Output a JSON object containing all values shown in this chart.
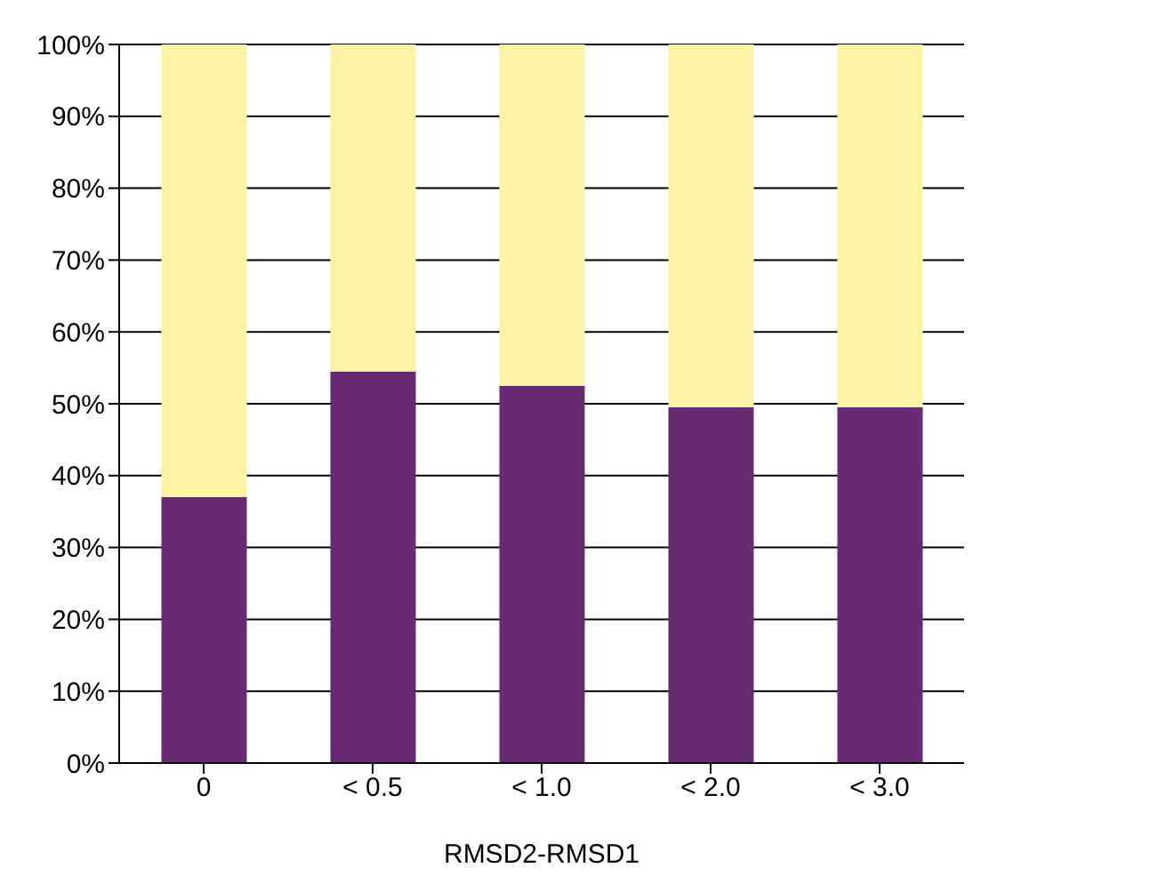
{
  "chart_data": {
    "type": "bar",
    "stacked": true,
    "xlabel": "RMSD2-RMSD1",
    "categories": [
      "0",
      "< 0.5",
      "< 1.0",
      "< 2.0",
      "< 3.0"
    ],
    "series": [
      {
        "color": "#682a72",
        "values": [
          37,
          54.5,
          52.5,
          49.5,
          49.5
        ]
      },
      {
        "color": "#fbf4a4",
        "values": [
          63,
          45.5,
          47.5,
          50.5,
          50.5
        ]
      }
    ],
    "ylim": [
      0,
      100
    ],
    "yticks": [
      {
        "value": 0,
        "label": "0%"
      },
      {
        "value": 10,
        "label": "10%"
      },
      {
        "value": 20,
        "label": "20%"
      },
      {
        "value": 30,
        "label": "30%"
      },
      {
        "value": 40,
        "label": "40%"
      },
      {
        "value": 50,
        "label": "50%"
      },
      {
        "value": 60,
        "label": "60%"
      },
      {
        "value": 70,
        "label": "70%"
      },
      {
        "value": 80,
        "label": "80%"
      },
      {
        "value": 90,
        "label": "90%"
      },
      {
        "value": 100,
        "label": "100%"
      }
    ],
    "grid": "y"
  }
}
